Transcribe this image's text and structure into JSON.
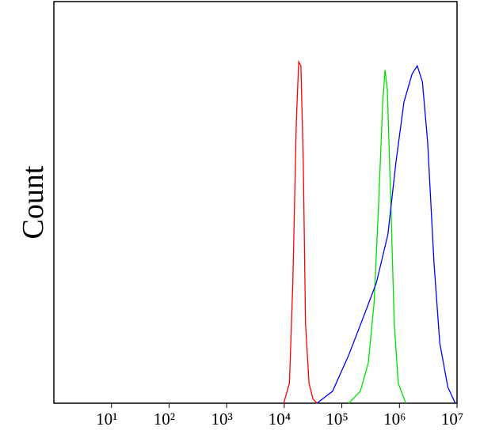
{
  "chart_data": {
    "type": "line",
    "y_label": "Count",
    "log_x": true,
    "xlim": [
      1,
      10000000
    ],
    "ylim": [
      0,
      100
    ],
    "xticks": [
      {
        "value": 10,
        "label": "10¹"
      },
      {
        "value": 100,
        "label": "10²"
      },
      {
        "value": 1000,
        "label": "10³"
      },
      {
        "value": 10000,
        "label": "10⁴"
      },
      {
        "value": 100000,
        "label": "10⁵"
      },
      {
        "value": 1000000,
        "label": "10⁶"
      },
      {
        "value": 10000000,
        "label": "10⁷"
      }
    ],
    "series": [
      {
        "color": "#ff0000",
        "x": [
          9800,
          12300,
          14100,
          16200,
          17800,
          19500,
          21400,
          23400,
          26900,
          31600,
          37200
        ],
        "values": [
          0,
          5,
          30,
          70,
          85,
          84,
          60,
          20,
          5,
          1,
          0
        ]
      },
      {
        "color": "#00e000",
        "x": [
          132000,
          209000,
          288000,
          363000,
          437000,
          513000,
          562000,
          617000,
          708000,
          813000,
          955000,
          1290000
        ],
        "values": [
          0,
          3,
          10,
          25,
          50,
          75,
          83,
          78,
          50,
          20,
          5,
          0
        ]
      },
      {
        "color": "#0000ff",
        "x": [
          37000,
          69000,
          132000,
          245000,
          398000,
          631000,
          871000,
          1200000,
          1660000,
          2040000,
          2510000,
          3090000,
          3980000,
          5010000,
          6920000,
          9330000
        ],
        "values": [
          0,
          3,
          12,
          22,
          30,
          42,
          60,
          75,
          82,
          84,
          80,
          65,
          35,
          15,
          4,
          0
        ]
      }
    ]
  }
}
